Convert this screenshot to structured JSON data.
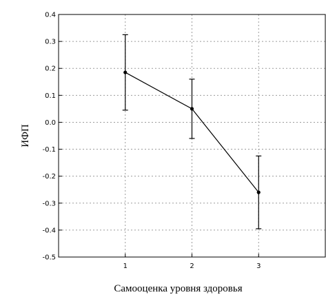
{
  "chart_data": {
    "type": "line",
    "title": "",
    "xlabel": "Самооценка уровня здоровья",
    "ylabel": "ИФП",
    "xlim": [
      0,
      4
    ],
    "ylim": [
      -0.5,
      0.4
    ],
    "grid": true,
    "x_ticks": [
      "1",
      "2",
      "3"
    ],
    "y_ticks": [
      "0.4",
      "0.3",
      "0.2",
      "0.1",
      "0.0",
      "-0.1",
      "-0.2",
      "-0.3",
      "-0.4",
      "-0.5"
    ],
    "series": [
      {
        "x": [
          1,
          2,
          3
        ],
        "values": [
          0.185,
          0.05,
          -0.26
        ],
        "err_low": [
          0.045,
          -0.06,
          -0.395
        ],
        "err_high": [
          0.325,
          0.16,
          -0.125
        ]
      }
    ]
  }
}
